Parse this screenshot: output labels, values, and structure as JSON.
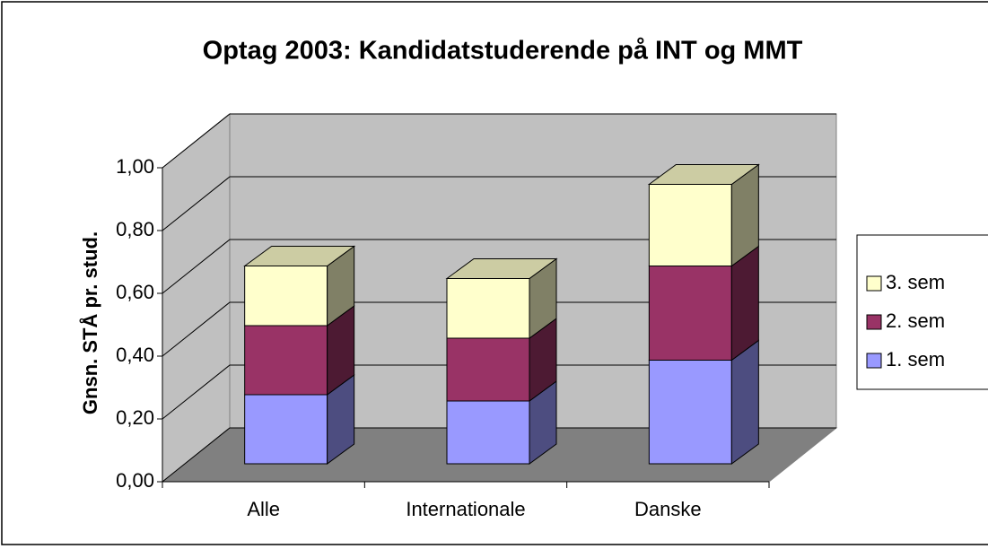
{
  "chart_data": {
    "type": "bar3d_stacked",
    "title": "Optag 2003: Kandidatstuderende på INT og MMT",
    "y_label": "Gnsn. STÅ pr. stud.",
    "categories": [
      "Alle",
      "Internationale",
      "Danske"
    ],
    "series": [
      {
        "name": "1. sem",
        "color": "#9999ff",
        "values": [
          0.22,
          0.2,
          0.33
        ]
      },
      {
        "name": "2. sem",
        "color": "#993366",
        "values": [
          0.22,
          0.2,
          0.3
        ]
      },
      {
        "name": "3. sem",
        "color": "#ffffcc",
        "values": [
          0.19,
          0.19,
          0.26
        ]
      }
    ],
    "ylim": [
      0,
      1
    ],
    "yticks": [
      {
        "value": 0,
        "label": "0,00"
      },
      {
        "value": 0.2,
        "label": "0,20"
      },
      {
        "value": 0.4,
        "label": "0,40"
      },
      {
        "value": 0.6,
        "label": "0,60"
      },
      {
        "value": 0.8,
        "label": "0,80"
      },
      {
        "value": 1,
        "label": "1,00"
      }
    ],
    "grid": true,
    "legend": "right"
  }
}
